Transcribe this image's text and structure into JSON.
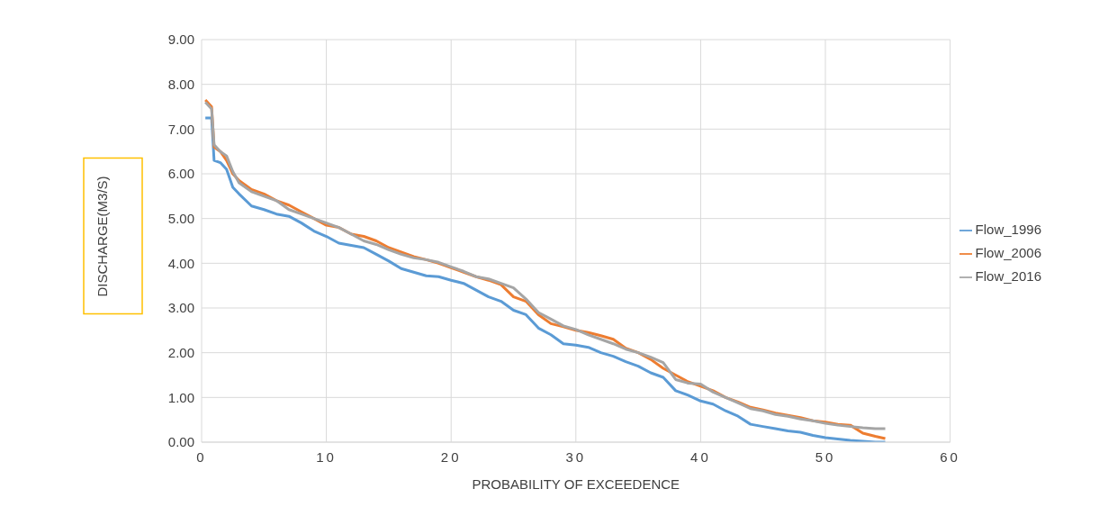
{
  "chart_data": {
    "type": "line",
    "xlabel": "PROBABILITY OF EXCEEDENCE",
    "ylabel": "DISCHARGE(M3/S)",
    "x": [
      0.3,
      0.8,
      1,
      1.5,
      2,
      2.5,
      3,
      4,
      5,
      6,
      7,
      8,
      9,
      10,
      11,
      12,
      13,
      14,
      15,
      16,
      17,
      18,
      19,
      20,
      21,
      22,
      23,
      24,
      25,
      26,
      27,
      28,
      29,
      30,
      31,
      32,
      33,
      34,
      35,
      36,
      37,
      38,
      39,
      40,
      41,
      42,
      43,
      44,
      45,
      46,
      47,
      48,
      49,
      50,
      51,
      52,
      53,
      54,
      54.8
    ],
    "series": [
      {
        "name": "Flow_1996",
        "color": "#5b9bd5",
        "values": [
          7.25,
          7.25,
          6.3,
          6.25,
          6.1,
          5.7,
          5.55,
          5.28,
          5.2,
          5.1,
          5.05,
          4.9,
          4.72,
          4.6,
          4.45,
          4.4,
          4.35,
          4.2,
          4.05,
          3.88,
          3.8,
          3.72,
          3.7,
          3.62,
          3.55,
          3.4,
          3.25,
          3.15,
          2.95,
          2.85,
          2.55,
          2.4,
          2.2,
          2.17,
          2.12,
          2.0,
          1.92,
          1.8,
          1.7,
          1.55,
          1.45,
          1.15,
          1.05,
          0.92,
          0.85,
          0.7,
          0.58,
          0.4,
          0.35,
          0.3,
          0.25,
          0.22,
          0.15,
          0.1,
          0.07,
          0.04,
          0.02,
          0,
          0
        ]
      },
      {
        "name": "Flow_2006",
        "color": "#ed7d31",
        "values": [
          7.65,
          7.5,
          6.6,
          6.5,
          6.3,
          6.0,
          5.85,
          5.65,
          5.55,
          5.4,
          5.3,
          5.15,
          5.0,
          4.85,
          4.8,
          4.65,
          4.6,
          4.5,
          4.35,
          4.25,
          4.15,
          4.08,
          4.0,
          3.9,
          3.8,
          3.7,
          3.62,
          3.52,
          3.25,
          3.15,
          2.85,
          2.65,
          2.58,
          2.5,
          2.45,
          2.38,
          2.3,
          2.1,
          2.0,
          1.85,
          1.65,
          1.5,
          1.35,
          1.25,
          1.15,
          1.0,
          0.9,
          0.78,
          0.72,
          0.65,
          0.6,
          0.55,
          0.48,
          0.45,
          0.4,
          0.38,
          0.2,
          0.13,
          0.08
        ]
      },
      {
        "name": "Flow_2016",
        "color": "#a5a5a5",
        "values": [
          7.6,
          7.45,
          6.65,
          6.5,
          6.4,
          6.05,
          5.8,
          5.6,
          5.5,
          5.4,
          5.2,
          5.1,
          5.0,
          4.9,
          4.8,
          4.65,
          4.5,
          4.42,
          4.3,
          4.2,
          4.12,
          4.08,
          4.02,
          3.92,
          3.82,
          3.7,
          3.65,
          3.55,
          3.45,
          3.2,
          2.9,
          2.75,
          2.6,
          2.52,
          2.4,
          2.3,
          2.2,
          2.08,
          2.0,
          1.9,
          1.78,
          1.4,
          1.32,
          1.3,
          1.12,
          1.0,
          0.88,
          0.75,
          0.7,
          0.62,
          0.58,
          0.52,
          0.48,
          0.42,
          0.38,
          0.35,
          0.32,
          0.3,
          0.3
        ]
      }
    ],
    "xlim": [
      0,
      60
    ],
    "xticks": [
      0,
      10,
      20,
      30,
      40,
      50,
      60
    ],
    "ylim": [
      0,
      9
    ],
    "yticks": [
      {
        "value": 0,
        "label": "0.00"
      },
      {
        "value": 1,
        "label": "1.00"
      },
      {
        "value": 2,
        "label": "2.00"
      },
      {
        "value": 3,
        "label": "3.00"
      },
      {
        "value": 4,
        "label": "4.00"
      },
      {
        "value": 5,
        "label": "5.00"
      },
      {
        "value": 6,
        "label": "6.00"
      },
      {
        "value": 7,
        "label": "7.00"
      },
      {
        "value": 8,
        "label": "8.00"
      },
      {
        "value": 9,
        "label": "9.00"
      }
    ],
    "grid": true,
    "legend": "right",
    "marker": "none",
    "line_style": "solid"
  }
}
